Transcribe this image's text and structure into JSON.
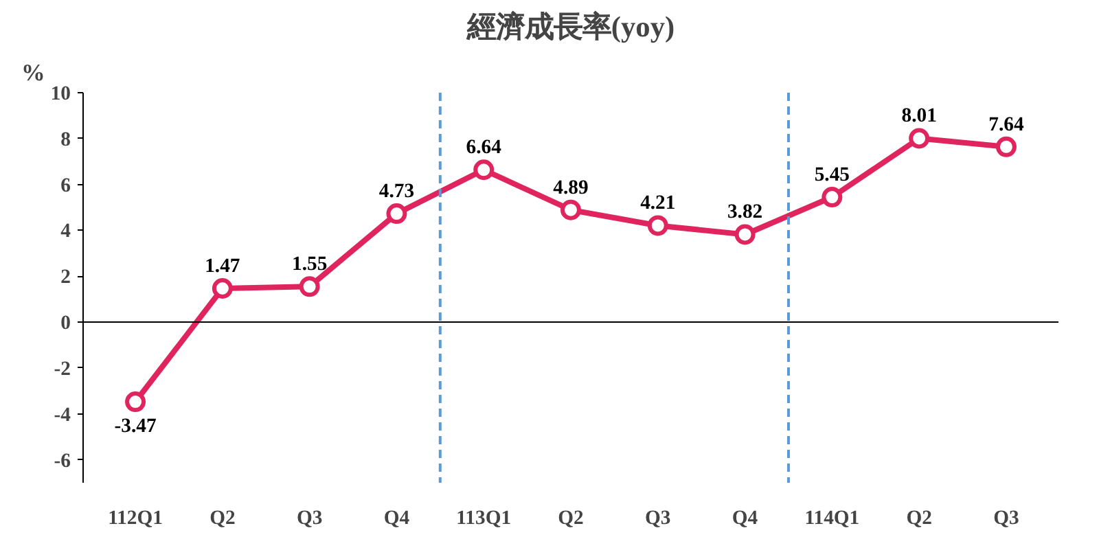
{
  "chart_data": {
    "type": "line",
    "title": "經濟成長率(yoy)",
    "ylabel": "%",
    "categories": [
      "112Q1",
      "Q2",
      "Q3",
      "Q4",
      "113Q1",
      "Q2",
      "Q3",
      "Q4",
      "114Q1",
      "Q2",
      "Q3"
    ],
    "series": [
      {
        "color": "#e0245e",
        "values": [
          -3.47,
          1.47,
          1.55,
          4.73,
          6.64,
          4.89,
          4.21,
          3.82,
          5.45,
          8.01,
          7.64
        ]
      }
    ],
    "ylim": [
      -7,
      10
    ],
    "yticks": [
      -6,
      -4,
      -2,
      0,
      2,
      4,
      6,
      8,
      10
    ],
    "data_labels": true,
    "marker": "circle",
    "line_style": "solid",
    "grid": false
  }
}
